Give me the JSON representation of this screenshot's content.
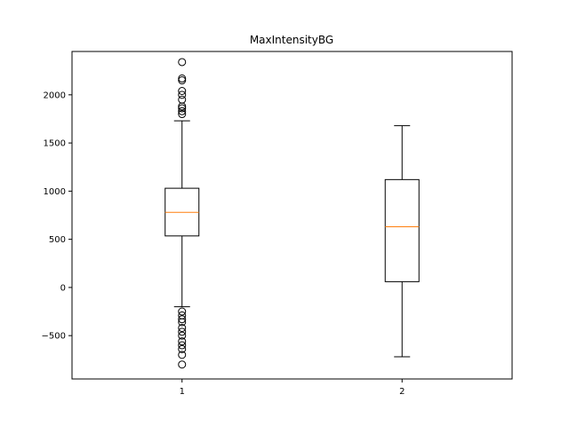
{
  "chart_data": {
    "type": "box",
    "title": "MaxIntensityBG",
    "xlabel": "",
    "ylabel": "",
    "categories": [
      "1",
      "2"
    ],
    "ylim": [
      -950,
      2450
    ],
    "yticks": [
      -500,
      0,
      500,
      1000,
      1500,
      2000
    ],
    "ytick_labels": [
      "−500",
      "0",
      "500",
      "1000",
      "1500",
      "2000"
    ],
    "grid": false,
    "colors": {
      "box": "#000000",
      "median": "#ff7f0e",
      "outlier": "#000000"
    },
    "boxes": [
      {
        "category": "1",
        "whisker_low": -200,
        "q1": 535,
        "median": 780,
        "q3": 1030,
        "whisker_high": 1730,
        "outliers": [
          -250,
          -290,
          -330,
          -360,
          -420,
          -460,
          -500,
          -560,
          -600,
          -640,
          -700,
          -800,
          1800,
          1830,
          1860,
          1880,
          1950,
          2000,
          2040,
          2150,
          2170,
          2340
        ]
      },
      {
        "category": "2",
        "whisker_low": -720,
        "q1": 60,
        "median": 630,
        "q3": 1120,
        "whisker_high": 1680,
        "outliers": []
      }
    ]
  }
}
